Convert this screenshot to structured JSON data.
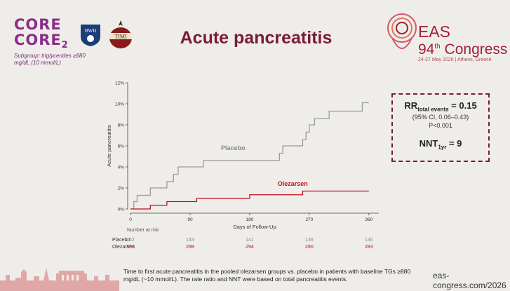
{
  "logos": {
    "core_line1": "CORE",
    "core_line2": "CORE",
    "core_sub": "2",
    "subgroup": "Subgroup: triglycerides ≥880 mg/dL (10 mmol/L)",
    "bwh": "BWH",
    "timi": "TIMI"
  },
  "title": "Acute pancreatitis",
  "congress": {
    "name": "EAS",
    "edition": "94",
    "edition_sup": "th",
    "word": "Congress",
    "date": "24-27 May 2026 | Athens, Greece"
  },
  "stats": {
    "rr_label": "RR",
    "rr_sub": "total events",
    "rr_value": " = 0.15",
    "ci": "(95% CI, 0.06–0.43)",
    "p": "P<0.001",
    "nnt_label": "NNT",
    "nnt_sub": "1yr",
    "nnt_value": " = 9"
  },
  "chart_data": {
    "type": "line",
    "xlabel": "Days of Follow-Up",
    "ylabel": "Acute pancreatitis",
    "xlim": [
      0,
      375
    ],
    "ylim": [
      0,
      12
    ],
    "xticks": [
      0,
      90,
      180,
      270,
      360
    ],
    "yticks": [
      0,
      2,
      4,
      6,
      8,
      10,
      12
    ],
    "ytick_labels": [
      "0%",
      "2%",
      "4%",
      "6%",
      "8%",
      "10%",
      "12%"
    ],
    "series": [
      {
        "name": "Placebo",
        "color": "#9a9a9a",
        "x": [
          0,
          5,
          10,
          30,
          55,
          65,
          72,
          110,
          140,
          225,
          230,
          260,
          265,
          270,
          278,
          300,
          350,
          360
        ],
        "y": [
          0,
          0.7,
          1.3,
          2.0,
          2.6,
          3.3,
          4.0,
          4.6,
          4.6,
          5.3,
          6.0,
          6.6,
          7.3,
          8.0,
          8.6,
          9.3,
          10.1,
          10.1
        ]
      },
      {
        "name": "Olezarsen",
        "color": "#c0101a",
        "x": [
          0,
          30,
          55,
          100,
          180,
          260,
          360
        ],
        "y": [
          0,
          0.35,
          0.7,
          1.0,
          1.35,
          1.7,
          1.7
        ]
      }
    ],
    "number_at_risk": {
      "title": "Number at risk",
      "rows": [
        {
          "label": "Placebo",
          "color": "#888888",
          "values": [
            "152",
            "143",
            "141",
            "136",
            "130"
          ]
        },
        {
          "label": "Olezarsen",
          "color": "#c0101a",
          "values": [
            "303",
            "298",
            "294",
            "290",
            "283"
          ]
        }
      ]
    }
  },
  "caption": "Time to first acute pancreatitis in the pooled olezarsen groups vs. placebo in patients with baseline TGs ≥880 mg/dL (~10 mmol/L). The rate ratio and NNT were based on total pancreatitis events.",
  "url": "eas-congress.com/2026"
}
